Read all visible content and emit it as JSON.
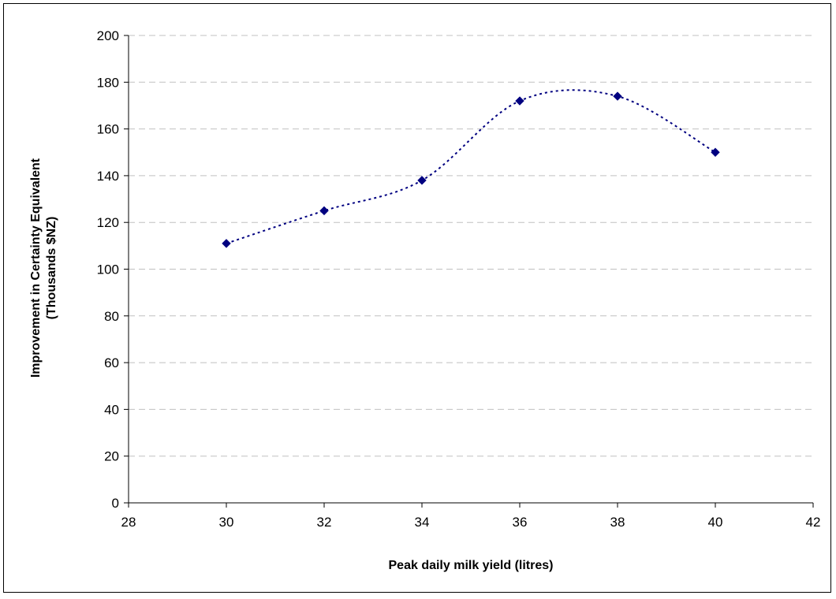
{
  "chart_data": {
    "type": "scatter",
    "title": "",
    "xlabel": "Peak daily milk yield (litres)",
    "ylabel_line1": "Improvement in Certainty Equivalent",
    "ylabel_line2": "(Thousands $NZ)",
    "xlim": [
      28,
      42
    ],
    "ylim": [
      0,
      200
    ],
    "x_ticks": [
      28,
      30,
      32,
      34,
      36,
      38,
      40,
      42
    ],
    "y_ticks": [
      0,
      20,
      40,
      60,
      80,
      100,
      120,
      140,
      160,
      180,
      200
    ],
    "grid": "horizontal-dashed",
    "legend": "none",
    "trendline": "smoothed-dotted",
    "marker": "diamond",
    "colors": {
      "marker": "#000080",
      "line": "#000080",
      "grid": "#c0c0c0"
    },
    "x": [
      30,
      32,
      34,
      36,
      38,
      40
    ],
    "y": [
      111,
      125,
      138,
      172,
      174,
      150
    ]
  }
}
